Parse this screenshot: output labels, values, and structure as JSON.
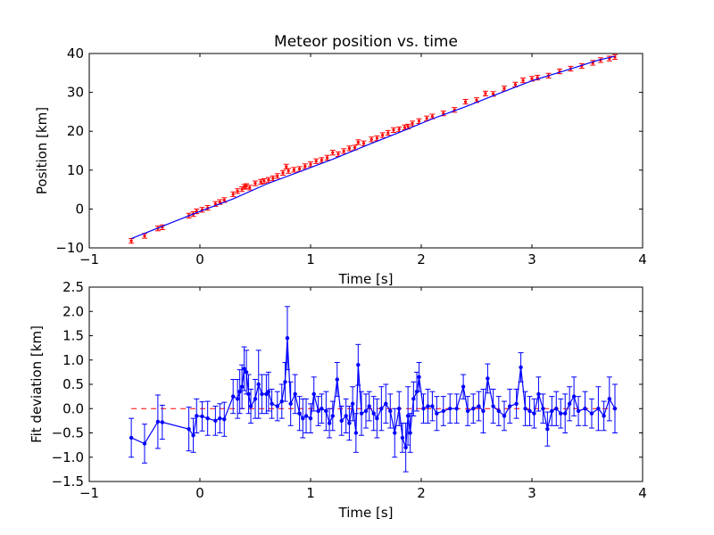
{
  "chart_data": [
    {
      "type": "scatter",
      "title": "Meteor position vs. time",
      "xlabel": "Time [s]",
      "ylabel": "Position [km]",
      "xlim": [
        -1,
        4
      ],
      "ylim": [
        -10,
        40
      ],
      "xticks": [
        -1,
        0,
        1,
        2,
        3,
        4
      ],
      "yticks": [
        -10,
        0,
        10,
        20,
        30,
        40
      ],
      "xtick_labels": [
        "−1",
        "0",
        "1",
        "2",
        "3",
        "4"
      ],
      "ytick_labels": [
        "−10",
        "0",
        "10",
        "20",
        "30",
        "40"
      ],
      "colors": {
        "points": "#ff0000",
        "fit": "#0000ff"
      },
      "fit_line": {
        "x": [
          -0.62,
          -0.3,
          0.0,
          0.3,
          0.6,
          0.9,
          1.2,
          1.5,
          1.8,
          2.1,
          2.4,
          2.7,
          3.0,
          3.3,
          3.6,
          3.75
        ],
        "y": [
          -7.6,
          -4.0,
          -0.6,
          2.6,
          6.4,
          9.6,
          12.8,
          16.3,
          19.7,
          23.2,
          26.3,
          29.7,
          33.0,
          35.6,
          38.3,
          39.3
        ]
      },
      "series": [
        {
          "x": [
            -0.62,
            -0.5,
            -0.38,
            -0.34,
            -0.1,
            -0.06,
            -0.03,
            0.02,
            0.07,
            0.14,
            0.18,
            0.22,
            0.3,
            0.34,
            0.38,
            0.4,
            0.42,
            0.45,
            0.5,
            0.55,
            0.58,
            0.62,
            0.66,
            0.7,
            0.75,
            0.78,
            0.8,
            0.85,
            0.9,
            0.95,
            1.0,
            1.05,
            1.1,
            1.15,
            1.2,
            1.25,
            1.3,
            1.35,
            1.4,
            1.43,
            1.48,
            1.55,
            1.6,
            1.65,
            1.7,
            1.75,
            1.8,
            1.85,
            1.88,
            1.92,
            1.98,
            2.05,
            2.1,
            2.2,
            2.3,
            2.4,
            2.5,
            2.58,
            2.65,
            2.75,
            2.85,
            2.92,
            3.0,
            3.05,
            3.15,
            3.25,
            3.35,
            3.45,
            3.55,
            3.62,
            3.7,
            3.75
          ],
          "y": [
            -8.2,
            -6.9,
            -5.0,
            -4.7,
            -1.7,
            -1.3,
            -0.6,
            -0.2,
            0.3,
            1.3,
            1.8,
            2.3,
            3.8,
            4.6,
            5.1,
            5.7,
            5.9,
            5.5,
            6.6,
            7.0,
            7.2,
            7.5,
            7.9,
            8.5,
            9.3,
            10.9,
            9.8,
            10.1,
            10.3,
            11.0,
            11.5,
            12.3,
            12.6,
            13.2,
            14.5,
            14.1,
            14.9,
            15.6,
            15.8,
            17.2,
            16.9,
            17.9,
            18.2,
            19.0,
            19.6,
            20.3,
            20.5,
            21.0,
            21.2,
            22.0,
            22.6,
            23.3,
            23.8,
            24.6,
            25.5,
            27.6,
            28.0,
            29.7,
            29.6,
            31.0,
            32.0,
            33.1,
            33.5,
            33.8,
            34.3,
            35.4,
            36.1,
            36.8,
            37.6,
            38.3,
            38.7,
            39.1
          ],
          "yerr": 0.6
        }
      ]
    },
    {
      "type": "line",
      "xlabel": "Time [s]",
      "ylabel": "Fit deviation [km]",
      "xlim": [
        -1,
        4
      ],
      "ylim": [
        -1.5,
        2.5
      ],
      "xticks": [
        -1,
        0,
        1,
        2,
        3,
        4
      ],
      "yticks": [
        -1.5,
        -1.0,
        -0.5,
        0.0,
        0.5,
        1.0,
        1.5,
        2.0,
        2.5
      ],
      "xtick_labels": [
        "−1",
        "0",
        "1",
        "2",
        "3",
        "4"
      ],
      "ytick_labels": [
        "−1.5",
        "−1.0",
        "−0.5",
        "0.0",
        "0.5",
        "1.0",
        "1.5",
        "2.0",
        "2.5"
      ],
      "colors": {
        "series": "#0000ff",
        "zero_line": "#ff0000"
      },
      "zero_line": {
        "y": 0,
        "x": [
          -0.62,
          3.75
        ],
        "style": "dashed"
      },
      "series": [
        {
          "x": [
            -0.62,
            -0.5,
            -0.38,
            -0.34,
            -0.1,
            -0.06,
            -0.03,
            0.02,
            0.07,
            0.14,
            0.18,
            0.22,
            0.3,
            0.34,
            0.36,
            0.38,
            0.4,
            0.42,
            0.44,
            0.46,
            0.5,
            0.53,
            0.56,
            0.6,
            0.62,
            0.65,
            0.7,
            0.74,
            0.77,
            0.79,
            0.82,
            0.86,
            0.9,
            0.93,
            0.96,
            1.0,
            1.03,
            1.07,
            1.1,
            1.14,
            1.17,
            1.2,
            1.24,
            1.28,
            1.32,
            1.35,
            1.38,
            1.41,
            1.43,
            1.46,
            1.5,
            1.53,
            1.57,
            1.6,
            1.64,
            1.68,
            1.72,
            1.76,
            1.8,
            1.83,
            1.86,
            1.88,
            1.9,
            1.93,
            1.96,
            1.98,
            2.02,
            2.06,
            2.1,
            2.14,
            2.2,
            2.26,
            2.32,
            2.38,
            2.42,
            2.47,
            2.52,
            2.56,
            2.6,
            2.65,
            2.7,
            2.75,
            2.8,
            2.86,
            2.9,
            2.94,
            2.98,
            3.02,
            3.06,
            3.1,
            3.14,
            3.18,
            3.22,
            3.26,
            3.3,
            3.34,
            3.38,
            3.42,
            3.48,
            3.54,
            3.6,
            3.65,
            3.7,
            3.75
          ],
          "y": [
            -0.6,
            -0.72,
            -0.27,
            -0.28,
            -0.42,
            -0.55,
            -0.15,
            -0.16,
            -0.2,
            -0.25,
            -0.2,
            -0.22,
            0.25,
            0.2,
            0.35,
            0.45,
            0.82,
            0.75,
            0.3,
            0.05,
            0.2,
            0.5,
            0.3,
            0.3,
            0.35,
            0.1,
            0.05,
            0.15,
            0.55,
            1.45,
            0.1,
            0.3,
            -0.1,
            -0.2,
            -0.15,
            -0.2,
            0.3,
            -0.05,
            0.0,
            -0.05,
            -0.3,
            -0.15,
            0.6,
            -0.25,
            -0.15,
            -0.3,
            0.1,
            -0.5,
            0.9,
            -0.1,
            -0.05,
            0.05,
            -0.1,
            -0.2,
            0.0,
            0.1,
            -0.05,
            -0.5,
            0.0,
            -0.6,
            -0.8,
            -0.15,
            -0.5,
            0.2,
            0.35,
            0.65,
            0.0,
            0.05,
            0.05,
            -0.1,
            -0.05,
            0.0,
            0.0,
            0.45,
            -0.05,
            0.0,
            0.05,
            -0.05,
            0.62,
            0.05,
            -0.05,
            -0.15,
            0.05,
            0.1,
            0.85,
            0.0,
            -0.05,
            -0.1,
            0.3,
            0.0,
            -0.42,
            -0.05,
            0.0,
            -0.1,
            -0.1,
            0.1,
            0.25,
            -0.05,
            0.0,
            -0.1,
            0.0,
            -0.15,
            0.2,
            0.0
          ],
          "yerr": [
            0.4,
            0.4,
            0.55,
            0.35,
            0.45,
            0.35,
            0.35,
            0.3,
            0.35,
            0.3,
            0.3,
            0.35,
            0.35,
            0.4,
            0.45,
            0.45,
            0.45,
            0.45,
            0.4,
            0.35,
            0.4,
            0.7,
            0.4,
            0.4,
            0.4,
            0.3,
            0.3,
            0.35,
            0.4,
            0.65,
            0.45,
            0.4,
            0.35,
            0.4,
            0.35,
            0.3,
            0.35,
            0.3,
            0.3,
            0.4,
            0.3,
            0.3,
            0.35,
            0.3,
            0.35,
            0.35,
            0.35,
            0.4,
            0.42,
            0.45,
            0.35,
            0.3,
            0.35,
            0.4,
            0.45,
            0.4,
            0.35,
            0.5,
            0.35,
            0.3,
            0.5,
            0.6,
            0.4,
            0.35,
            0.4,
            0.3,
            0.3,
            0.35,
            0.3,
            0.35,
            0.3,
            0.3,
            0.3,
            0.25,
            0.3,
            0.3,
            0.3,
            0.45,
            0.3,
            0.35,
            0.3,
            0.3,
            0.35,
            0.3,
            0.3,
            0.35,
            0.3,
            0.3,
            0.35,
            0.3,
            0.35,
            0.3,
            0.35,
            0.3,
            0.4,
            0.35,
            0.4,
            0.3,
            0.35,
            0.3,
            0.45,
            0.3,
            0.45,
            0.5
          ]
        }
      ]
    }
  ]
}
